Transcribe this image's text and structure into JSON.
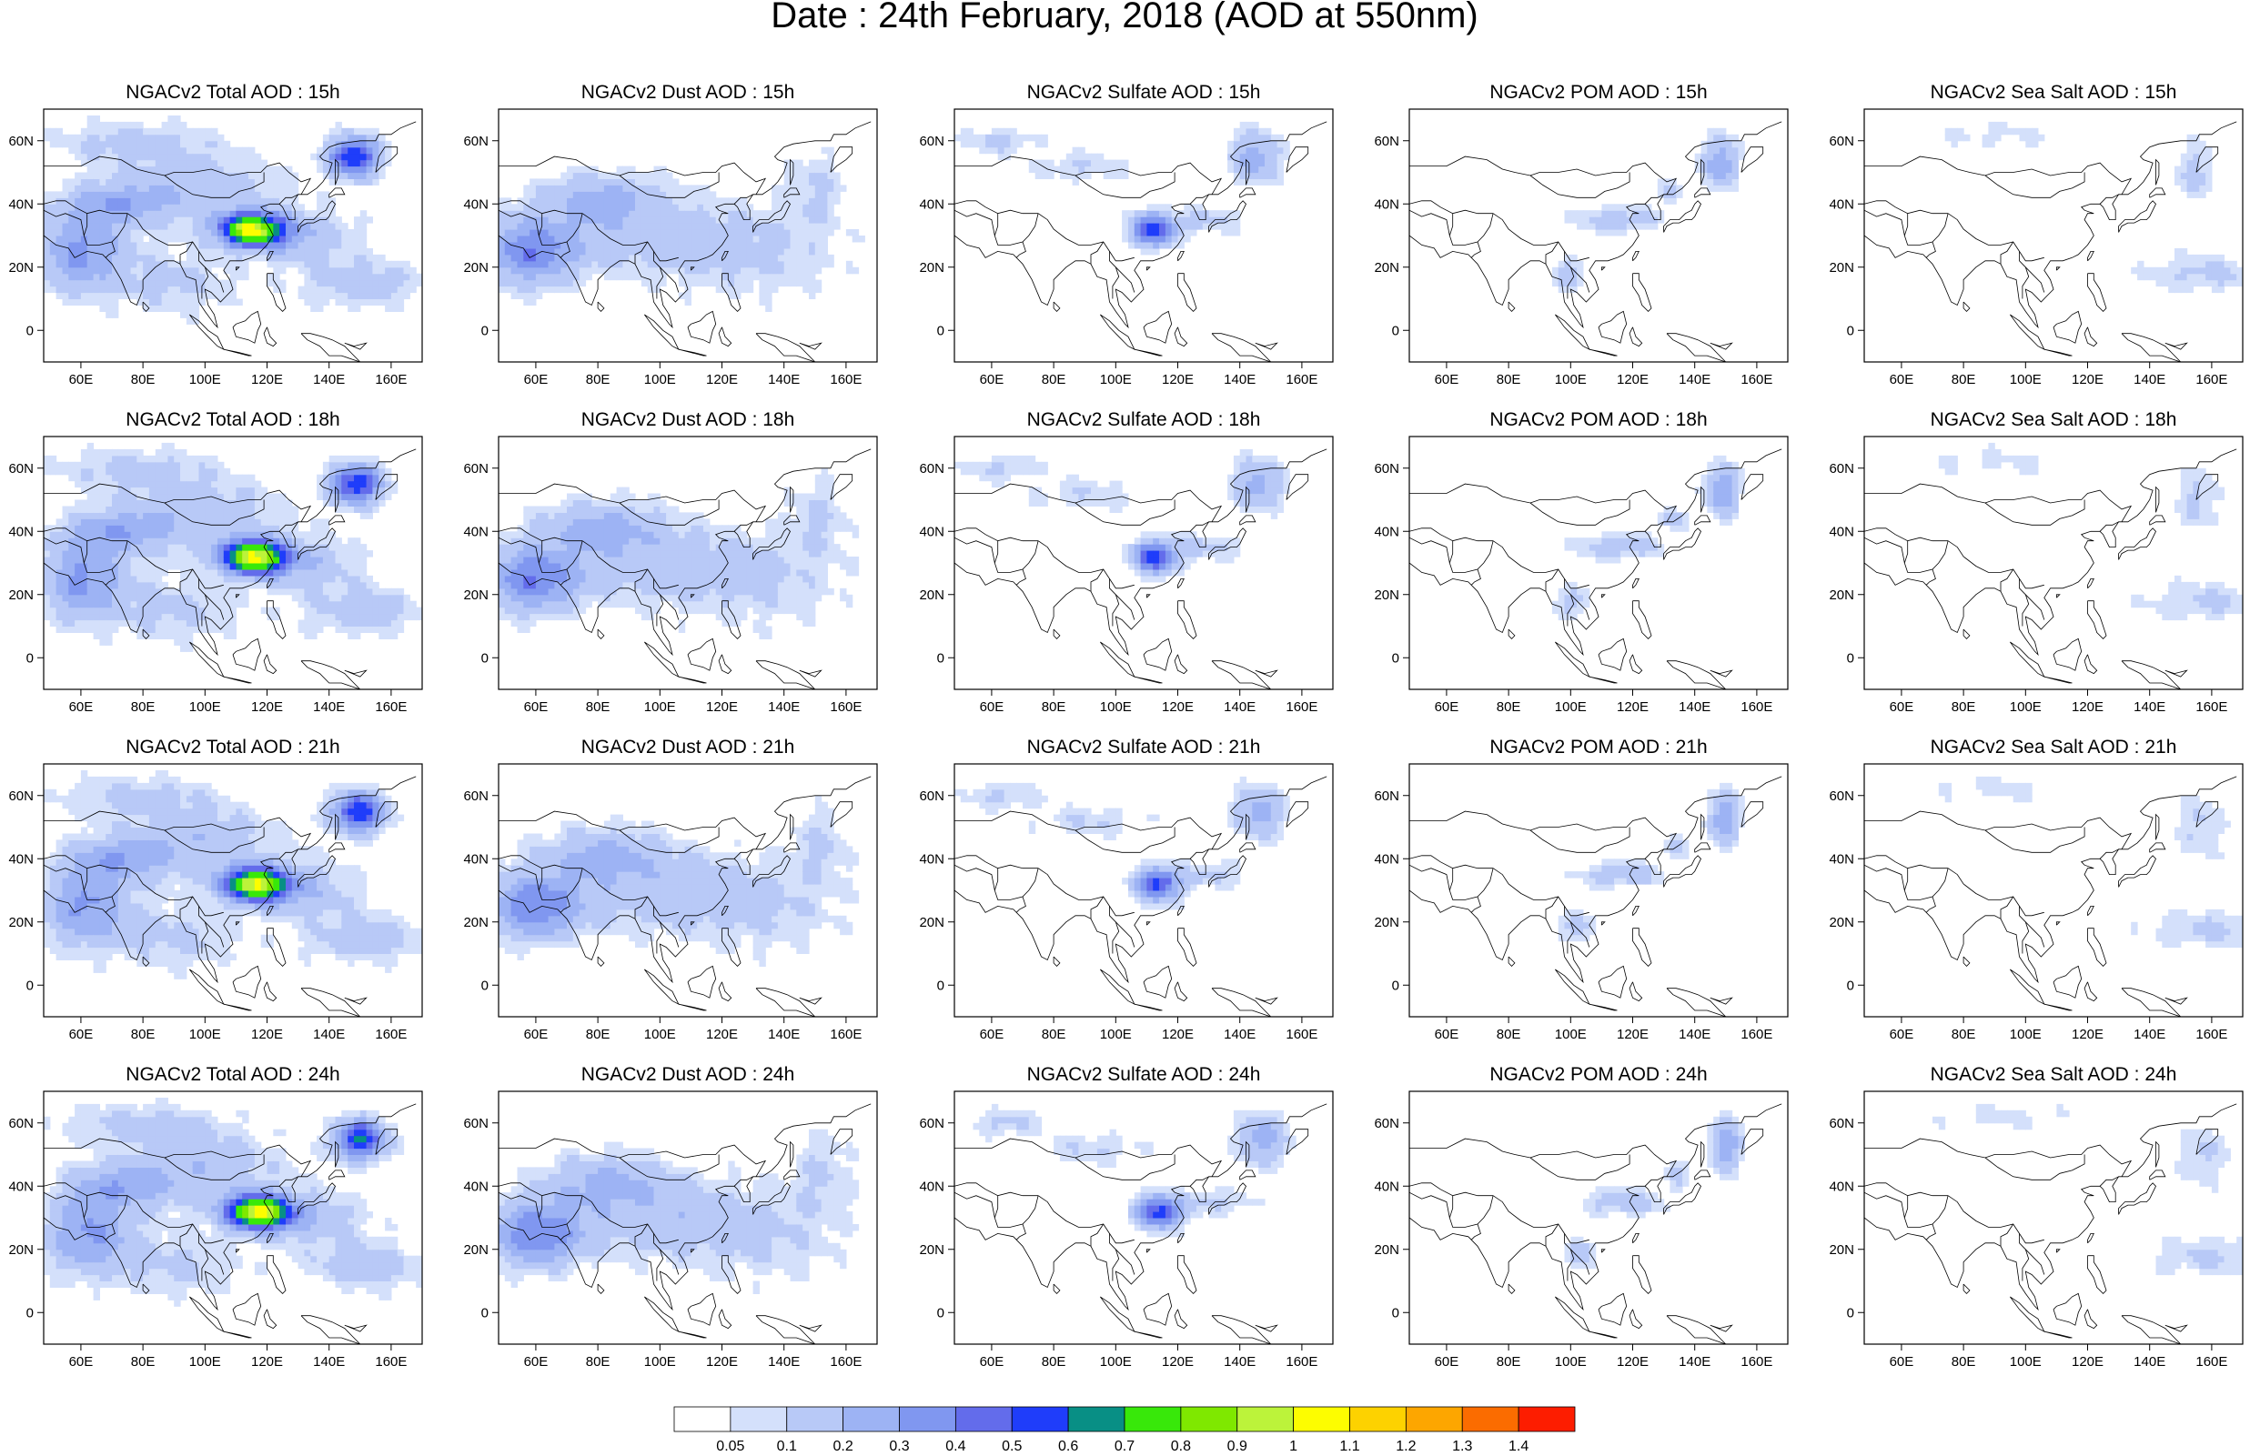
{
  "figure": {
    "title": "Date : 24th February, 2018 (AOD at 550nm)"
  },
  "panels": [
    [
      {
        "title": "NGACv2 Total AOD : 15h",
        "kind": "total",
        "hour": "15h"
      },
      {
        "title": "NGACv2 Dust AOD : 15h",
        "kind": "dust",
        "hour": "15h"
      },
      {
        "title": "NGACv2 Sulfate AOD : 15h",
        "kind": "sulfate",
        "hour": "15h"
      },
      {
        "title": "NGACv2 POM AOD : 15h",
        "kind": "pom",
        "hour": "15h"
      },
      {
        "title": "NGACv2 Sea Salt AOD : 15h",
        "kind": "seasalt",
        "hour": "15h"
      }
    ],
    [
      {
        "title": "NGACv2 Total AOD : 18h",
        "kind": "total",
        "hour": "18h"
      },
      {
        "title": "NGACv2 Dust AOD : 18h",
        "kind": "dust",
        "hour": "18h"
      },
      {
        "title": "NGACv2 Sulfate AOD : 18h",
        "kind": "sulfate",
        "hour": "18h"
      },
      {
        "title": "NGACv2 POM AOD : 18h",
        "kind": "pom",
        "hour": "18h"
      },
      {
        "title": "NGACv2 Sea Salt AOD : 18h",
        "kind": "seasalt",
        "hour": "18h"
      }
    ],
    [
      {
        "title": "NGACv2 Total AOD : 21h",
        "kind": "total",
        "hour": "21h"
      },
      {
        "title": "NGACv2 Dust AOD : 21h",
        "kind": "dust",
        "hour": "21h"
      },
      {
        "title": "NGACv2 Sulfate AOD : 21h",
        "kind": "sulfate",
        "hour": "21h"
      },
      {
        "title": "NGACv2 POM AOD : 21h",
        "kind": "pom",
        "hour": "21h"
      },
      {
        "title": "NGACv2 Sea Salt AOD : 21h",
        "kind": "seasalt",
        "hour": "21h"
      }
    ],
    [
      {
        "title": "NGACv2 Total AOD : 24h",
        "kind": "total",
        "hour": "24h"
      },
      {
        "title": "NGACv2 Dust AOD : 24h",
        "kind": "dust",
        "hour": "24h"
      },
      {
        "title": "NGACv2 Sulfate AOD : 24h",
        "kind": "sulfate",
        "hour": "24h"
      },
      {
        "title": "NGACv2 POM AOD : 24h",
        "kind": "pom",
        "hour": "24h"
      },
      {
        "title": "NGACv2 Sea Salt  AOD : 24h",
        "kind": "seasalt",
        "hour": "24h"
      }
    ]
  ],
  "map_axes": {
    "lon_range": [
      48,
      170
    ],
    "lat_range": [
      -10,
      70
    ],
    "x_ticks": [
      "60E",
      "80E",
      "100E",
      "120E",
      "140E",
      "160E"
    ],
    "x_tick_values": [
      60,
      80,
      100,
      120,
      140,
      160
    ],
    "y_ticks": [
      "60N",
      "40N",
      "20N",
      "0"
    ],
    "y_tick_values": [
      60,
      40,
      20,
      0
    ]
  },
  "colorbar": {
    "labels": [
      "0.05",
      "0.1",
      "0.2",
      "0.3",
      "0.4",
      "0.5",
      "0.6",
      "0.7",
      "0.8",
      "0.9",
      "1",
      "1.1",
      "1.2",
      "1.3",
      "1.4"
    ],
    "colors": [
      "#ffffff",
      "#d4e0fb",
      "#b8c9f7",
      "#9db3f4",
      "#8097f0",
      "#636ceb",
      "#1f3dfa",
      "#088f85",
      "#38e80a",
      "#7fe800",
      "#bcf33a",
      "#fdfd00",
      "#fdd200",
      "#fda600",
      "#fb6c00",
      "#fd1d00"
    ]
  },
  "colors": {
    "land_outline": "#000000",
    "frame": "#000000"
  }
}
